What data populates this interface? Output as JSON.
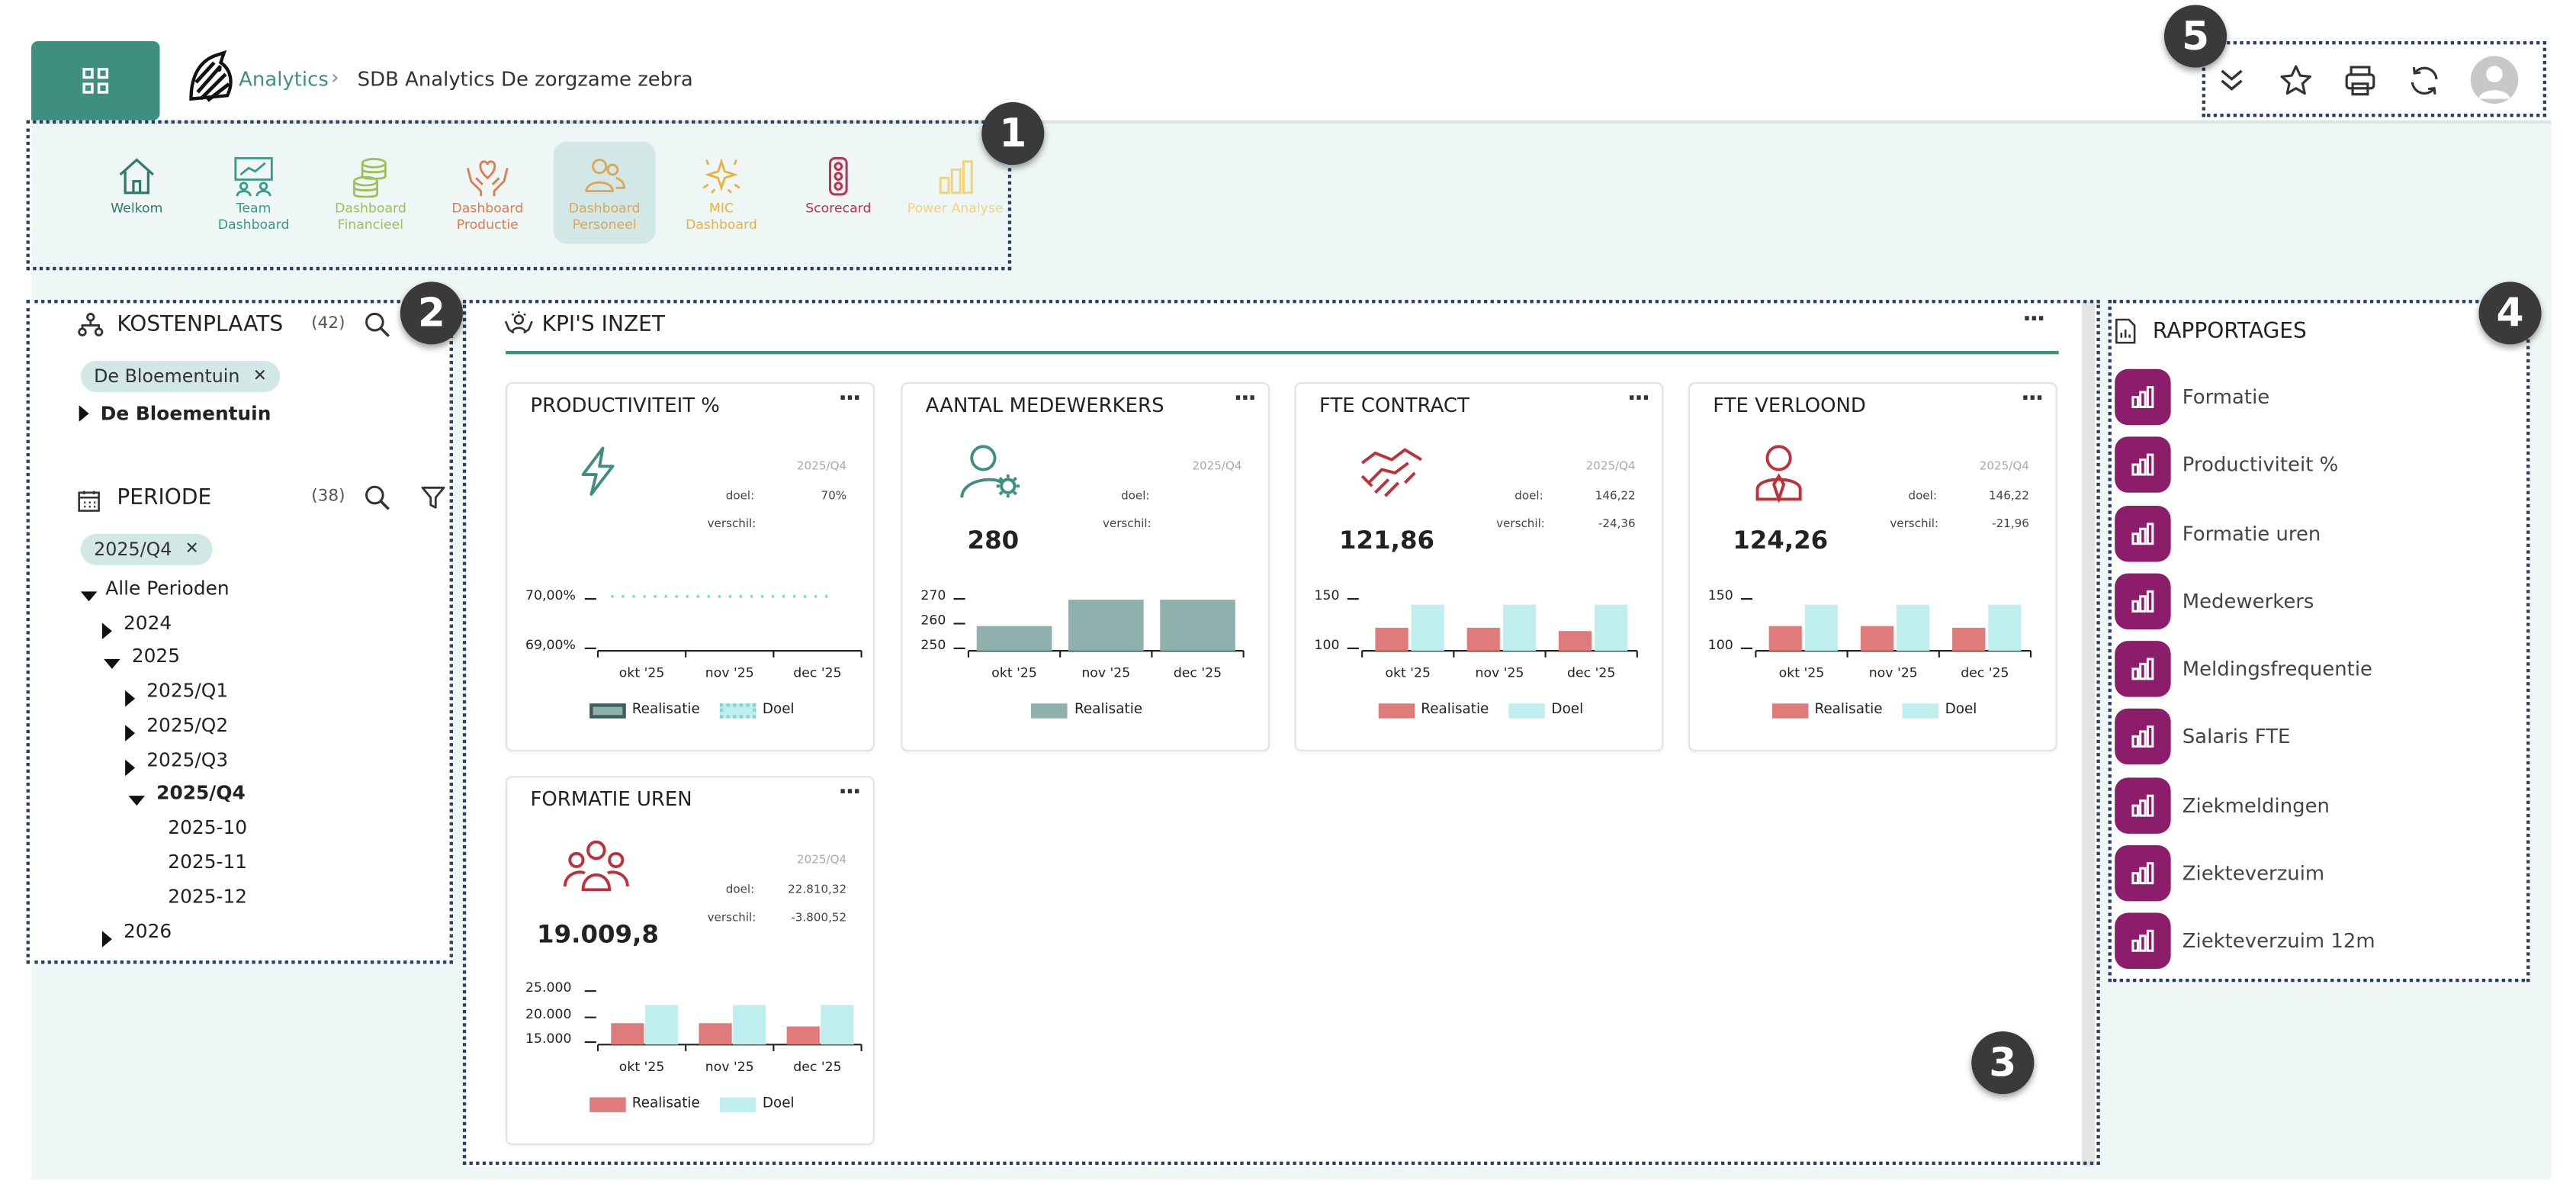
{
  "header": {
    "logo_label": "apps-grid",
    "breadcrumb_root": "Analytics",
    "breadcrumb_sep": "›",
    "breadcrumb_current": "SDB Analytics De zorgzame zebra"
  },
  "nav": [
    {
      "label": "Welkom",
      "color": "#2f7a6a",
      "icon": "home-icon"
    },
    {
      "label": "Team\nDashboard",
      "color": "#3a9a89",
      "icon": "team-chart-icon"
    },
    {
      "label": "Dashboard\nFinancieel",
      "color": "#9bc25b",
      "icon": "coins-icon"
    },
    {
      "label": "Dashboard\nProductie",
      "color": "#e07b4a",
      "icon": "hands-heart-icon"
    },
    {
      "label": "Dashboard\nPersoneel",
      "color": "#e0a552",
      "icon": "people-icon"
    },
    {
      "label": "MIC\nDashboard",
      "color": "#e8b341",
      "icon": "sparkle-icon"
    },
    {
      "label": "Scorecard",
      "color": "#c0304a",
      "icon": "traffic-light-icon"
    },
    {
      "label": "Power Analyse",
      "color": "#f2d27a",
      "icon": "bar-chart-icon"
    }
  ],
  "kostenplaats": {
    "title": "KOSTENPLAATS",
    "count": "(42)",
    "chip": "De Bloementuin",
    "item": "De Bloementuin"
  },
  "periode": {
    "title": "PERIODE",
    "count": "(38)",
    "chip": "2025/Q4",
    "tree": [
      "Alle Perioden",
      "2024",
      "2025",
      "2025/Q1",
      "2025/Q2",
      "2025/Q3",
      "2025/Q4",
      "2025-10",
      "2025-11",
      "2025-12",
      "2026"
    ]
  },
  "kpi": {
    "title": "KPI'S INZET",
    "more": "···"
  },
  "cards": [
    {
      "title": "PRODUCTIVITEIT %",
      "period": "2025/Q4",
      "doel_label": "doel:",
      "doel": "70%",
      "verschil_label": "verschil:",
      "verschil": "",
      "big": "",
      "yticks": [
        "70,00%",
        "69,00%"
      ],
      "x": [
        "okt '25",
        "nov '25",
        "dec '25"
      ],
      "legend": [
        "Realisatie",
        "Doel"
      ]
    },
    {
      "title": "AANTAL MEDEWERKERS",
      "period": "2025/Q4",
      "doel_label": "doel:",
      "doel": "",
      "verschil_label": "verschil:",
      "verschil": "",
      "big": "280",
      "yticks": [
        "270",
        "260",
        "250"
      ],
      "x": [
        "okt '25",
        "nov '25",
        "dec '25"
      ],
      "legend": [
        "Realisatie"
      ]
    },
    {
      "title": "FTE CONTRACT",
      "period": "2025/Q4",
      "doel_label": "doel:",
      "doel": "146,22",
      "verschil_label": "verschil:",
      "verschil": "-24,36",
      "big": "121,86",
      "yticks": [
        "150",
        "100"
      ],
      "x": [
        "okt '25",
        "nov '25",
        "dec '25"
      ],
      "legend": [
        "Realisatie",
        "Doel"
      ]
    },
    {
      "title": "FTE VERLOOND",
      "period": "2025/Q4",
      "doel_label": "doel:",
      "doel": "146,22",
      "verschil_label": "verschil:",
      "verschil": "-21,96",
      "big": "124,26",
      "yticks": [
        "150",
        "100"
      ],
      "x": [
        "okt '25",
        "nov '25",
        "dec '25"
      ],
      "legend": [
        "Realisatie",
        "Doel"
      ]
    },
    {
      "title": "FORMATIE UREN",
      "period": "2025/Q4",
      "doel_label": "doel:",
      "doel": "22.810,32",
      "verschil_label": "verschil:",
      "verschil": "-3.800,52",
      "big": "19.009,8",
      "yticks": [
        "25.000",
        "20.000",
        "15.000"
      ],
      "x": [
        "okt '25",
        "nov '25",
        "dec '25"
      ],
      "legend": [
        "Realisatie",
        "Doel"
      ]
    }
  ],
  "rapportages": {
    "title": "RAPPORTAGES",
    "items": [
      "Formatie",
      "Productiviteit %",
      "Formatie uren",
      "Medewerkers",
      "Meldingsfrequentie",
      "Salaris FTE",
      "Ziekmeldingen",
      "Ziekteverzuim",
      "Ziekteverzuim 12m"
    ]
  },
  "callouts": [
    "1",
    "2",
    "3",
    "4",
    "5"
  ],
  "colors": {
    "teal": "#3f8f80",
    "realisatie_green": "#8fb1ad",
    "realisatie_red": "#e07b7b",
    "doel": "#bfeeee",
    "brand_purple": "#8b1d6a"
  }
}
